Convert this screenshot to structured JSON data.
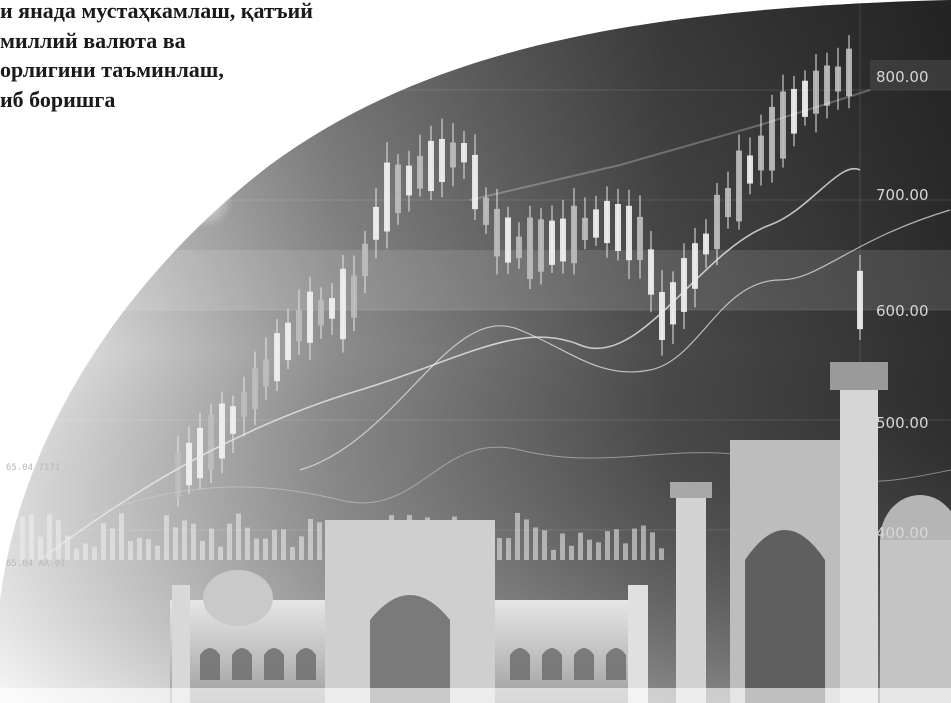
{
  "headline": {
    "lines": [
      "и янада мустаҳкамлаш, қатъий",
      "миллий валюта ва",
      "орлигини таъминлаш,",
      "иб боришга"
    ]
  },
  "chart_overlay": {
    "price_scale_labels": [
      "800.00",
      "700.00",
      "600.00",
      "500.00",
      "400.00"
    ],
    "small_labels": [
      "65.04 AA-01",
      "65.04 7171"
    ]
  },
  "colors": {
    "background": "#ffffff",
    "headline_text": "#1a1a1a",
    "photo_dark": "#3a3a3a",
    "photo_light": "#d9d9d9"
  }
}
